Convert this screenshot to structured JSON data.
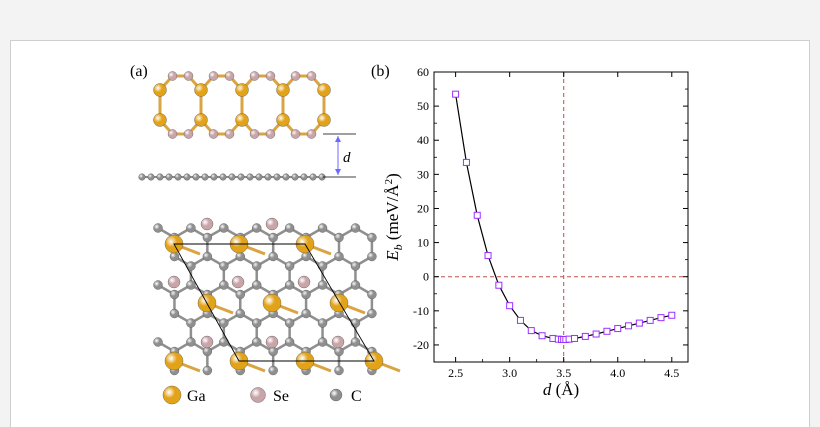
{
  "figure": {
    "panel_a_label": "(a)",
    "panel_b_label": "(b)",
    "distance_label": "d",
    "legend": [
      {
        "label": "Ga",
        "color": "#e3a319"
      },
      {
        "label": "Se",
        "color": "#c9a4a8"
      },
      {
        "label": "C",
        "color": "#8f8f8f"
      }
    ],
    "bond_color_gase": "#d9a441",
    "bond_color_c": "#8f8f8f",
    "arrow_color": "#6a6aff"
  },
  "chart_data": {
    "type": "line",
    "title": "",
    "xlabel": "d (Å)",
    "ylabel": "E_b (meV/Å^2)",
    "xlabel_italic": "d",
    "xlabel_rest": " (Å)",
    "ylabel_main": "E",
    "ylabel_sub": "b",
    "ylabel_units": " (meV/Å",
    "ylabel_sup": "2",
    "ylabel_close": ")",
    "xlim": [
      2.3,
      4.65
    ],
    "ylim": [
      -25,
      60
    ],
    "xticks": [
      2.5,
      3.0,
      3.5,
      4.0,
      4.5
    ],
    "xtick_labels": [
      "2.5",
      "3.0",
      "3.5",
      "4.0",
      "4.5"
    ],
    "yticks": [
      -20,
      -10,
      0,
      10,
      20,
      30,
      40,
      50,
      60
    ],
    "ytick_labels": [
      "-20",
      "-10",
      "0",
      "10",
      "20",
      "30",
      "40",
      "50",
      "60"
    ],
    "reference_lines": {
      "x": 3.5,
      "y": 0,
      "color": "#c0504d"
    },
    "marker": "open-square",
    "marker_color": "#9b30ff",
    "line_color": "#000000",
    "series": [
      {
        "x": [
          2.5,
          2.6,
          2.7,
          2.8,
          2.9,
          3.0,
          3.1,
          3.2,
          3.3,
          3.4,
          3.45,
          3.48,
          3.5,
          3.52,
          3.55,
          3.6,
          3.7,
          3.8,
          3.9,
          4.0,
          4.1,
          4.2,
          4.3,
          4.4,
          4.5
        ],
        "y": [
          53.5,
          33.5,
          18.0,
          6.2,
          -2.5,
          -8.5,
          -12.8,
          -15.8,
          -17.3,
          -18.1,
          -18.3,
          -18.4,
          -18.4,
          -18.4,
          -18.3,
          -18.1,
          -17.5,
          -16.8,
          -16.0,
          -15.2,
          -14.4,
          -13.6,
          -12.8,
          -12.0,
          -11.3
        ]
      }
    ]
  }
}
